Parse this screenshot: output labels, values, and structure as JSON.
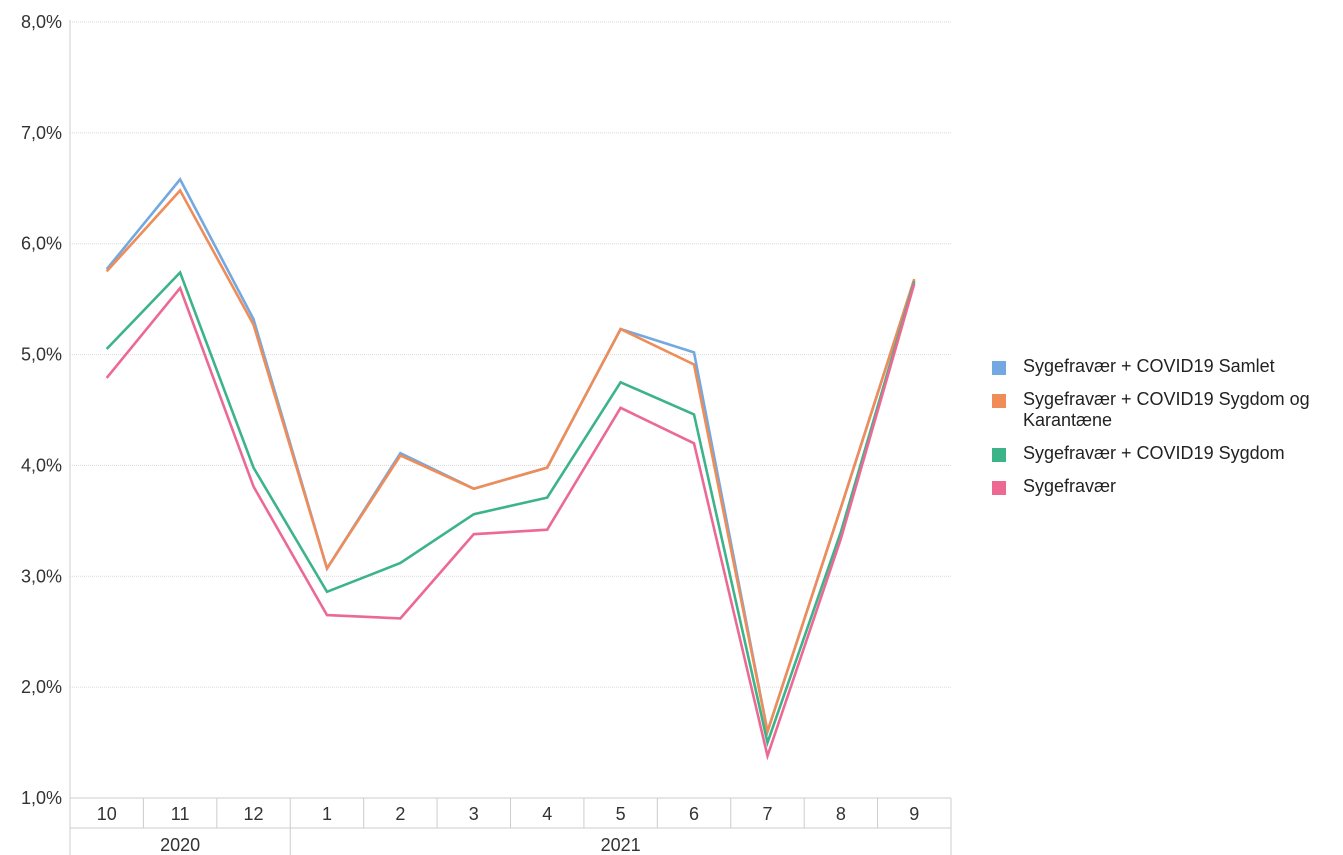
{
  "chart_data": {
    "type": "line",
    "title": "",
    "xlabel": "",
    "ylabel": "",
    "ylim": [
      1.0,
      8.0
    ],
    "y_ticks": [
      "1,0%",
      "2,0%",
      "3,0%",
      "4,0%",
      "5,0%",
      "6,0%",
      "7,0%",
      "8,0%"
    ],
    "y_tick_values": [
      1,
      2,
      3,
      4,
      5,
      6,
      7,
      8
    ],
    "categories": [
      "10",
      "11",
      "12",
      "1",
      "2",
      "3",
      "4",
      "5",
      "6",
      "7",
      "8",
      "9"
    ],
    "year_groups": [
      {
        "label": "2020",
        "count": 3
      },
      {
        "label": "2021",
        "count": 9
      }
    ],
    "grid": true,
    "legend_position": "right",
    "series": [
      {
        "name": "Sygefravær + COVID19 Samlet",
        "color": "#74a8e0",
        "values": [
          5.77,
          6.58,
          5.32,
          3.07,
          4.11,
          3.79,
          3.98,
          5.23,
          5.02,
          1.6,
          3.62,
          5.68
        ]
      },
      {
        "name": "Sygefravær + COVID19 Sygdom og Karantæne",
        "color": "#ef8c57",
        "values": [
          5.75,
          6.48,
          5.27,
          3.07,
          4.09,
          3.79,
          3.98,
          5.23,
          4.91,
          1.6,
          3.62,
          5.68
        ]
      },
      {
        "name": "Sygefravær + COVID19 Sygdom",
        "color": "#3db38a",
        "values": [
          5.05,
          5.74,
          3.98,
          2.86,
          3.12,
          3.56,
          3.71,
          4.75,
          4.46,
          1.5,
          3.4,
          5.66
        ]
      },
      {
        "name": "Sygefravær",
        "color": "#ec6994",
        "values": [
          4.79,
          5.6,
          3.81,
          2.65,
          2.62,
          3.38,
          3.42,
          4.52,
          4.2,
          1.38,
          3.34,
          5.64
        ]
      }
    ]
  },
  "legend": {
    "items": [
      {
        "label": "Sygefravær + COVID19 Samlet",
        "color": "#74a8e0"
      },
      {
        "label": "Sygefravær + COVID19 Sygdom og Karantæne",
        "color": "#ef8c57"
      },
      {
        "label": "Sygefravær + COVID19 Sygdom",
        "color": "#3db38a"
      },
      {
        "label": "Sygefravær",
        "color": "#ec6994"
      }
    ]
  }
}
